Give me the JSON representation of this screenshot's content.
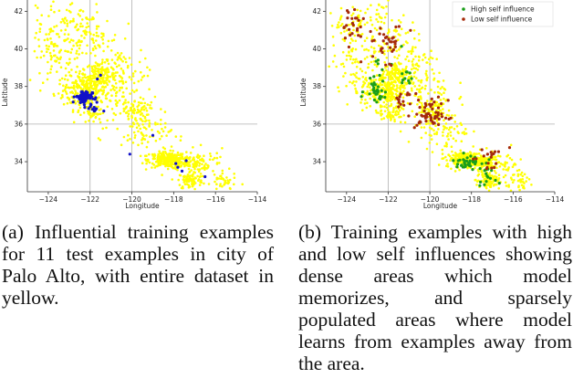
{
  "figure": {
    "captions": [
      "(a) Influential training examples for 11 test examples in city of Palo Alto, with entire dataset in yellow.",
      "(b) Training examples with high and low self influences showing dense areas which model memorizes, and sparsely populated areas where model learns from examples away from the area."
    ]
  },
  "colors": {
    "dataset": "#ffff00",
    "influential": "#1010c8",
    "high_self_influence": "#1a9e1a",
    "low_self_influence": "#a52a0a",
    "grid": "#b0b0b0"
  },
  "chart_data": [
    {
      "type": "scatter",
      "xlabel": "Longitude",
      "ylabel": "Latitude",
      "xlim": [
        -125,
        -114
      ],
      "ylim": [
        32.4,
        42.6
      ],
      "xticks": [
        "−124",
        "−122",
        "−120",
        "−118",
        "−116",
        "−114"
      ],
      "yticks": [
        "34",
        "36",
        "38",
        "40",
        "42"
      ],
      "grid": true,
      "series": [
        {
          "color": "yellow",
          "clusters": [
            {
              "lon": -122.3,
              "lat": 37.8,
              "spread": [
                0.5,
                0.5
              ],
              "n": 220
            },
            {
              "lon": -121.5,
              "lat": 38.6,
              "spread": [
                0.35,
                0.35
              ],
              "n": 120
            },
            {
              "lon": -118.3,
              "lat": 34.1,
              "spread": [
                0.45,
                0.2
              ],
              "n": 260
            },
            {
              "lon": -117.2,
              "lat": 33.0,
              "spread": [
                0.3,
                0.25
              ],
              "n": 90
            },
            {
              "lon": -117.4,
              "lat": 34.0,
              "spread": [
                0.35,
                0.2
              ],
              "n": 80
            },
            {
              "lon": -119.8,
              "lat": 36.7,
              "spread": [
                0.3,
                0.3
              ],
              "n": 60
            },
            {
              "lon": -121.9,
              "lat": 36.6,
              "spread": [
                0.3,
                0.3
              ],
              "n": 50
            },
            {
              "lon": -123.3,
              "lat": 39.5,
              "spread": [
                0.7,
                0.9
              ],
              "n": 90
            },
            {
              "lon": -122.0,
              "lat": 40.5,
              "spread": [
                0.7,
                0.7
              ],
              "n": 80
            },
            {
              "lon": -120.5,
              "lat": 37.5,
              "spread": [
                0.8,
                0.8
              ],
              "n": 110
            },
            {
              "lon": -119.3,
              "lat": 35.5,
              "spread": [
                0.6,
                0.5
              ],
              "n": 70
            },
            {
              "lon": -116.5,
              "lat": 33.8,
              "spread": [
                0.5,
                0.4
              ],
              "n": 60
            },
            {
              "lon": -115.6,
              "lat": 32.9,
              "spread": [
                0.3,
                0.25
              ],
              "n": 35
            },
            {
              "lon": -120.5,
              "lat": 39.0,
              "spread": [
                0.6,
                0.6
              ],
              "n": 50
            },
            {
              "lon": -123.9,
              "lat": 41.0,
              "spread": [
                0.5,
                0.7
              ],
              "n": 40
            },
            {
              "lon": -122.8,
              "lat": 41.8,
              "spread": [
                0.6,
                0.4
              ],
              "n": 30
            }
          ]
        },
        {
          "color": "blue",
          "panel": "a",
          "clusters": [
            {
              "lon": -122.3,
              "lat": 37.45,
              "spread": [
                0.2,
                0.18
              ],
              "n": 65
            },
            {
              "lon": -121.9,
              "lat": 36.9,
              "spread": [
                0.2,
                0.2
              ],
              "n": 12
            }
          ],
          "points": [
            {
              "lon": -121.65,
              "lat": 38.4
            },
            {
              "lon": -121.5,
              "lat": 38.6
            },
            {
              "lon": -119.0,
              "lat": 35.4
            },
            {
              "lon": -120.1,
              "lat": 34.4
            },
            {
              "lon": -117.9,
              "lat": 33.9
            },
            {
              "lon": -117.8,
              "lat": 33.7
            },
            {
              "lon": -117.6,
              "lat": 33.5
            },
            {
              "lon": -116.5,
              "lat": 33.2
            },
            {
              "lon": -117.4,
              "lat": 34.05
            }
          ]
        },
        {
          "name": "High self influence",
          "color": "green",
          "panel": "b",
          "clusters": [
            {
              "lon": -122.6,
              "lat": 37.8,
              "spread": [
                0.25,
                0.3
              ],
              "n": 30
            },
            {
              "lon": -118.2,
              "lat": 34.0,
              "spread": [
                0.35,
                0.18
              ],
              "n": 40
            },
            {
              "lon": -117.3,
              "lat": 33.2,
              "spread": [
                0.2,
                0.2
              ],
              "n": 14
            },
            {
              "lon": -121.1,
              "lat": 38.4,
              "spread": [
                0.2,
                0.2
              ],
              "n": 10
            },
            {
              "lon": -122.3,
              "lat": 39.3,
              "spread": [
                0.4,
                0.4
              ],
              "n": 8
            }
          ]
        },
        {
          "name": "Low self influence",
          "color": "brown",
          "panel": "b",
          "clusters": [
            {
              "lon": -119.9,
              "lat": 36.5,
              "spread": [
                0.4,
                0.4
              ],
              "n": 55
            },
            {
              "lon": -122.1,
              "lat": 40.3,
              "spread": [
                0.5,
                0.5
              ],
              "n": 35
            },
            {
              "lon": -123.8,
              "lat": 41.3,
              "spread": [
                0.35,
                0.5
              ],
              "n": 25
            },
            {
              "lon": -121.2,
              "lat": 37.2,
              "spread": [
                0.3,
                0.3
              ],
              "n": 15
            },
            {
              "lon": -117.3,
              "lat": 33.9,
              "spread": [
                0.3,
                0.3
              ],
              "n": 12
            },
            {
              "lon": -116.8,
              "lat": 34.5,
              "spread": [
                0.3,
                0.3
              ],
              "n": 6
            }
          ]
        }
      ]
    }
  ]
}
